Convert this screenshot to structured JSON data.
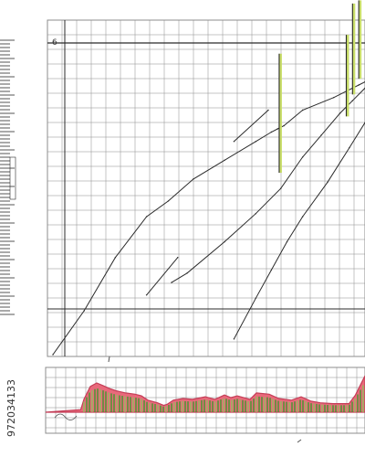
{
  "stock_id": "972034133",
  "page_glyph": "6",
  "colors": {
    "grid": "#8c8c8c",
    "ink": "#2b2b2b",
    "area_fill": "#e86a7b",
    "area_stroke": "#c43e57",
    "bars": "#3f9a2d",
    "bar_light": "#8fc15c",
    "highlight": "#c9de6a",
    "paper": "#ffffff"
  },
  "chart_data": [
    {
      "type": "line",
      "title": "",
      "xlabel": "",
      "ylabel": "",
      "grid": true,
      "legend": "none",
      "xlim": [
        0,
        100
      ],
      "ylim": [
        0,
        100
      ],
      "series": [
        {
          "x": [
            0,
            10,
            20,
            30,
            37,
            45,
            55,
            65,
            70,
            72,
            74,
            80,
            90,
            98,
            100
          ],
          "y": [
            0,
            14,
            31,
            44,
            49,
            56,
            62,
            68,
            71,
            72,
            73,
            78,
            82,
            86,
            87
          ]
        },
        {
          "x": [
            58,
            65,
            70,
            75,
            80,
            88,
            95,
            100
          ],
          "y": [
            5,
            18,
            27,
            36,
            44,
            55,
            66,
            74
          ]
        },
        {
          "x": [
            38,
            43,
            55,
            65,
            73,
            80,
            86,
            92,
            96,
            100
          ],
          "y": [
            23,
            26,
            36,
            45,
            53,
            63,
            70,
            77,
            81,
            85
          ]
        },
        {
          "x": [
            30,
            40
          ],
          "y": [
            19,
            31
          ]
        },
        {
          "x": [
            58,
            69
          ],
          "y": [
            68,
            78
          ]
        }
      ],
      "spikes": [
        {
          "x": 72.5,
          "y0": 58,
          "y1": 96
        },
        {
          "x": 94,
          "y0": 76,
          "y1": 102
        },
        {
          "x": 96,
          "y0": 83,
          "y1": 112
        },
        {
          "x": 98,
          "y0": 88,
          "y1": 113
        }
      ]
    },
    {
      "type": "area",
      "title": "",
      "xlabel": "",
      "ylabel": "",
      "grid": true,
      "legend": "none",
      "xlim": [
        0,
        100
      ],
      "ylim": [
        0,
        100
      ],
      "x": [
        0,
        11,
        12,
        14,
        16,
        18,
        20,
        22,
        25,
        28,
        30,
        32,
        35,
        37,
        38,
        40,
        43,
        46,
        50,
        53,
        56,
        58,
        60,
        64,
        66,
        70,
        73,
        77,
        80,
        83,
        86,
        90,
        95,
        97,
        100
      ],
      "values": [
        0,
        6,
        30,
        60,
        68,
        62,
        55,
        50,
        45,
        42,
        38,
        28,
        22,
        16,
        18,
        28,
        32,
        30,
        36,
        30,
        40,
        34,
        38,
        30,
        45,
        42,
        32,
        28,
        36,
        26,
        22,
        20,
        20,
        40,
        85
      ]
    }
  ]
}
